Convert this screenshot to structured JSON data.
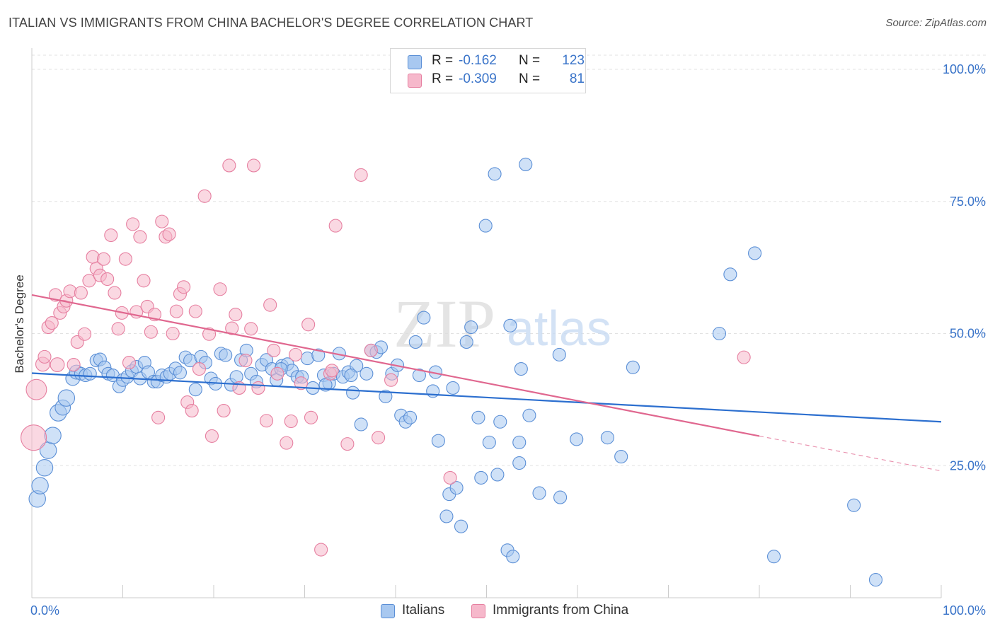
{
  "title": "ITALIAN VS IMMIGRANTS FROM CHINA BACHELOR'S DEGREE CORRELATION CHART",
  "source": "Source: ZipAtlas.com",
  "watermark": {
    "part1": "ZIP",
    "part2": "atlas"
  },
  "legend_top": [
    {
      "r_label": "R =",
      "r_value": "-0.162",
      "n_label": "N =",
      "n_value": "123",
      "color": "#a8c8f0"
    },
    {
      "r_label": "R =",
      "r_value": "-0.309",
      "n_label": "N =",
      "n_value": "81",
      "color": "#f6b8cb"
    }
  ],
  "legend_bottom": [
    {
      "label": "Italians",
      "color": "#a8c8f0"
    },
    {
      "label": "Immigrants from China",
      "color": "#f6b8cb"
    }
  ],
  "colors": {
    "blue_fill": "#a8c8f0",
    "blue_stroke": "#5b8fd6",
    "blue_line": "#2c6fcf",
    "pink_fill": "#f6b8cb",
    "pink_stroke": "#e67fa0",
    "pink_line": "#e0678f",
    "tick_text": "#3a74c9",
    "grid": "#e2e2e2"
  },
  "chart_data": {
    "type": "scatter",
    "title": "ITALIAN VS IMMIGRANTS FROM CHINA BACHELOR'S DEGREE CORRELATION CHART",
    "xlabel": "",
    "ylabel": "Bachelor's Degree",
    "xlim": [
      0,
      100
    ],
    "ylim": [
      0,
      100
    ],
    "x_tick_labels": [
      "0.0%",
      "100.0%"
    ],
    "y_ticks": [
      25,
      50,
      75,
      100
    ],
    "y_tick_labels": [
      "25.0%",
      "50.0%",
      "75.0%",
      "100.0%"
    ],
    "grid": "horizontal dashed",
    "series": [
      {
        "name": "Italians",
        "stats": {
          "R": -0.162,
          "N": 123
        },
        "trend": {
          "x0": 0,
          "y0": 42.5,
          "x1": 100,
          "y1": 33.3
        },
        "points": [
          [
            0.6,
            18.7,
            1.3
          ],
          [
            0.9,
            21.2,
            1.3
          ],
          [
            1.4,
            24.6,
            1.3
          ],
          [
            1.8,
            27.9,
            1.3
          ],
          [
            2.3,
            30.7,
            1.3
          ],
          [
            2.9,
            35.0,
            1.3
          ],
          [
            3.4,
            36.0,
            1.2
          ],
          [
            3.8,
            37.8,
            1.3
          ],
          [
            4.5,
            41.5,
            1.1
          ],
          [
            4.9,
            42.7,
            1.1
          ],
          [
            5.4,
            42.4,
            1.0
          ],
          [
            5.9,
            42.1,
            1.0
          ],
          [
            6.4,
            42.4,
            1.0
          ],
          [
            7.1,
            44.9,
            1.0
          ],
          [
            7.5,
            45.1,
            1.0
          ],
          [
            8.0,
            43.6,
            1.0
          ],
          [
            8.4,
            42.4,
            1.0
          ],
          [
            8.9,
            42.1,
            1.0
          ],
          [
            9.6,
            40.0,
            1.0
          ],
          [
            10.0,
            41.2,
            1.0
          ],
          [
            10.5,
            41.8,
            1.0
          ],
          [
            11.0,
            42.9,
            1.0
          ],
          [
            11.5,
            43.7,
            1.0
          ],
          [
            11.9,
            41.5,
            1.0
          ],
          [
            12.4,
            44.5,
            1.0
          ],
          [
            12.8,
            42.7,
            1.0
          ],
          [
            13.4,
            40.9,
            1.0
          ],
          [
            13.8,
            40.9,
            1.0
          ],
          [
            14.3,
            42.1,
            1.0
          ],
          [
            14.8,
            41.8,
            1.0
          ],
          [
            15.2,
            42.4,
            1.0
          ],
          [
            15.8,
            43.4,
            1.0
          ],
          [
            16.3,
            42.6,
            1.0
          ],
          [
            16.9,
            45.5,
            1.0
          ],
          [
            17.4,
            44.9,
            1.0
          ],
          [
            18.0,
            39.4,
            1.0
          ],
          [
            18.6,
            45.6,
            1.0
          ],
          [
            19.1,
            44.5,
            1.0
          ],
          [
            19.7,
            41.5,
            1.0
          ],
          [
            20.2,
            40.5,
            1.0
          ],
          [
            20.8,
            46.2,
            1.0
          ],
          [
            21.3,
            45.9,
            1.0
          ],
          [
            21.9,
            40.3,
            1.0
          ],
          [
            22.5,
            41.8,
            1.0
          ],
          [
            23.0,
            45.0,
            1.0
          ],
          [
            23.6,
            46.8,
            1.0
          ],
          [
            24.1,
            42.4,
            1.0
          ],
          [
            24.7,
            40.9,
            1.0
          ],
          [
            25.3,
            44.1,
            1.0
          ],
          [
            25.8,
            45.0,
            1.0
          ],
          [
            26.4,
            43.3,
            1.0
          ],
          [
            26.9,
            41.2,
            1.0
          ],
          [
            27.5,
            43.9,
            1.0
          ],
          [
            28.1,
            44.2,
            1.0
          ],
          [
            28.6,
            43.0,
            1.0
          ],
          [
            29.2,
            41.8,
            1.0
          ],
          [
            29.7,
            41.8,
            1.0
          ],
          [
            30.3,
            45.3,
            1.0
          ],
          [
            30.9,
            39.7,
            1.0
          ],
          [
            31.5,
            45.9,
            1.0
          ],
          [
            32.1,
            42.1,
            1.0
          ],
          [
            32.7,
            40.6,
            1.0
          ],
          [
            33.2,
            42.4,
            1.0
          ],
          [
            33.8,
            46.2,
            1.0
          ],
          [
            34.2,
            41.8,
            1.0
          ],
          [
            34.8,
            42.7,
            1.0
          ],
          [
            35.3,
            38.8,
            1.0
          ],
          [
            35.7,
            43.9,
            1.0
          ],
          [
            36.2,
            32.8,
            1.0
          ],
          [
            36.8,
            42.4,
            1.0
          ],
          [
            37.3,
            46.8,
            1.0
          ],
          [
            37.9,
            46.5,
            1.0
          ],
          [
            38.4,
            47.4,
            1.0
          ],
          [
            38.9,
            38.1,
            1.0
          ],
          [
            39.6,
            42.4,
            1.0
          ],
          [
            40.2,
            44.0,
            1.0
          ],
          [
            40.6,
            34.5,
            1.0
          ],
          [
            41.1,
            33.3,
            1.0
          ],
          [
            41.6,
            34.1,
            1.0
          ],
          [
            42.2,
            48.4,
            1.0
          ],
          [
            42.6,
            42.1,
            1.0
          ],
          [
            43.1,
            53.0,
            1.0
          ],
          [
            44.1,
            39.1,
            1.0
          ],
          [
            44.4,
            42.7,
            1.0
          ],
          [
            44.7,
            29.7,
            1.0
          ],
          [
            45.6,
            15.4,
            1.0
          ],
          [
            45.9,
            19.6,
            1.0
          ],
          [
            46.7,
            20.8,
            1.0
          ],
          [
            46.3,
            39.7,
            1.0
          ],
          [
            47.2,
            13.5,
            1.0
          ],
          [
            47.8,
            48.4,
            1.0
          ],
          [
            48.3,
            51.2,
            1.0
          ],
          [
            49.1,
            34.1,
            1.0
          ],
          [
            49.4,
            22.7,
            1.0
          ],
          [
            50.3,
            29.4,
            1.0
          ],
          [
            50.9,
            80.2,
            1.0
          ],
          [
            51.2,
            23.3,
            1.0
          ],
          [
            51.5,
            33.3,
            1.0
          ],
          [
            52.3,
            9.0,
            1.0
          ],
          [
            52.6,
            51.5,
            1.0
          ],
          [
            52.9,
            7.8,
            1.0
          ],
          [
            53.8,
            43.3,
            1.0
          ],
          [
            53.6,
            25.5,
            1.0
          ],
          [
            54.3,
            82.0,
            1.0
          ],
          [
            54.7,
            34.5,
            1.0
          ],
          [
            49.9,
            70.4,
            1.0
          ],
          [
            58.1,
            19.0,
            1.0
          ],
          [
            59.9,
            30.0,
            1.0
          ],
          [
            63.3,
            30.3,
            1.0
          ],
          [
            64.8,
            26.7,
            1.0
          ],
          [
            66.1,
            43.6,
            1.0
          ],
          [
            75.6,
            50.0,
            1.0
          ],
          [
            76.8,
            61.2,
            1.0
          ],
          [
            79.5,
            65.2,
            1.0
          ],
          [
            81.6,
            7.8,
            1.0
          ],
          [
            90.4,
            17.5,
            1.0
          ],
          [
            92.8,
            3.4,
            1.0
          ],
          [
            55.8,
            19.8,
            1.0
          ],
          [
            53.6,
            29.4,
            1.0
          ],
          [
            32.3,
            40.3,
            1.0
          ],
          [
            27.4,
            43.3,
            1.0
          ],
          [
            35.1,
            42.1,
            1.0
          ],
          [
            58.0,
            46.0,
            1.0
          ]
        ]
      },
      {
        "name": "Immigrants from China",
        "stats": {
          "R": -0.309,
          "N": 81
        },
        "trend": {
          "x0": 0,
          "y0": 57.3,
          "x1": 80.0,
          "y1": 30.6,
          "dash_to": {
            "x": 100,
            "y": 24.0
          }
        },
        "points": [
          [
            0.2,
            30.3,
            2.0
          ],
          [
            0.5,
            39.4,
            1.6
          ],
          [
            1.2,
            44.2,
            1.1
          ],
          [
            1.4,
            45.6,
            1.0
          ],
          [
            1.8,
            51.2,
            1.0
          ],
          [
            2.2,
            52.0,
            1.0
          ],
          [
            2.6,
            57.3,
            1.0
          ],
          [
            3.1,
            53.9,
            1.0
          ],
          [
            3.5,
            55.1,
            1.0
          ],
          [
            3.8,
            56.2,
            1.0
          ],
          [
            4.2,
            58.0,
            1.0
          ],
          [
            4.6,
            44.1,
            1.0
          ],
          [
            5.0,
            48.4,
            1.0
          ],
          [
            5.4,
            57.7,
            1.0
          ],
          [
            5.8,
            49.9,
            1.0
          ],
          [
            6.3,
            60.0,
            1.0
          ],
          [
            6.7,
            64.5,
            1.0
          ],
          [
            7.1,
            62.3,
            1.0
          ],
          [
            7.5,
            61.0,
            1.0
          ],
          [
            7.9,
            64.1,
            1.0
          ],
          [
            8.3,
            60.3,
            1.0
          ],
          [
            8.7,
            68.6,
            1.0
          ],
          [
            9.1,
            57.7,
            1.0
          ],
          [
            9.5,
            50.9,
            1.0
          ],
          [
            9.9,
            53.9,
            1.0
          ],
          [
            10.3,
            64.1,
            1.0
          ],
          [
            10.7,
            44.5,
            1.0
          ],
          [
            11.1,
            70.7,
            1.0
          ],
          [
            11.5,
            54.1,
            1.0
          ],
          [
            11.9,
            68.3,
            1.0
          ],
          [
            12.3,
            60.0,
            1.0
          ],
          [
            12.7,
            55.1,
            1.0
          ],
          [
            13.1,
            50.3,
            1.0
          ],
          [
            13.5,
            53.6,
            1.0
          ],
          [
            13.9,
            34.1,
            1.0
          ],
          [
            14.3,
            71.2,
            1.0
          ],
          [
            14.7,
            68.3,
            1.0
          ],
          [
            15.1,
            68.8,
            1.0
          ],
          [
            15.5,
            50.0,
            1.0
          ],
          [
            15.9,
            54.2,
            1.0
          ],
          [
            16.3,
            57.5,
            1.0
          ],
          [
            16.7,
            58.8,
            1.0
          ],
          [
            17.1,
            37.0,
            1.0
          ],
          [
            17.6,
            35.4,
            1.0
          ],
          [
            18.0,
            54.2,
            1.0
          ],
          [
            18.4,
            43.3,
            1.0
          ],
          [
            19.0,
            76.0,
            1.0
          ],
          [
            19.5,
            49.9,
            1.0
          ],
          [
            19.8,
            30.6,
            1.0
          ],
          [
            20.7,
            58.4,
            1.0
          ],
          [
            21.1,
            35.4,
            1.0
          ],
          [
            21.7,
            81.8,
            1.0
          ],
          [
            22.0,
            51.0,
            1.0
          ],
          [
            22.4,
            53.6,
            1.0
          ],
          [
            22.8,
            39.7,
            1.0
          ],
          [
            23.5,
            44.9,
            1.0
          ],
          [
            24.1,
            50.9,
            1.0
          ],
          [
            24.4,
            81.8,
            1.0
          ],
          [
            24.9,
            39.7,
            1.0
          ],
          [
            25.8,
            33.5,
            1.0
          ],
          [
            26.2,
            55.4,
            1.0
          ],
          [
            26.6,
            46.8,
            1.0
          ],
          [
            27.0,
            42.4,
            1.0
          ],
          [
            28.0,
            29.3,
            1.0
          ],
          [
            28.5,
            33.4,
            1.0
          ],
          [
            29.0,
            46.0,
            1.0
          ],
          [
            29.6,
            40.6,
            1.0
          ],
          [
            30.4,
            51.7,
            1.0
          ],
          [
            30.7,
            34.1,
            1.0
          ],
          [
            31.8,
            9.1,
            1.0
          ],
          [
            32.8,
            42.4,
            1.0
          ],
          [
            33.4,
            70.4,
            1.0
          ],
          [
            34.7,
            29.1,
            1.0
          ],
          [
            36.2,
            80.0,
            1.0
          ],
          [
            38.1,
            30.3,
            1.0
          ],
          [
            39.5,
            41.2,
            1.0
          ],
          [
            46.0,
            22.7,
            1.0
          ],
          [
            78.3,
            45.5,
            1.0
          ],
          [
            33.0,
            43.0,
            1.0
          ],
          [
            37.3,
            46.8,
            1.0
          ],
          [
            2.8,
            44.1,
            1.1
          ]
        ]
      }
    ]
  }
}
